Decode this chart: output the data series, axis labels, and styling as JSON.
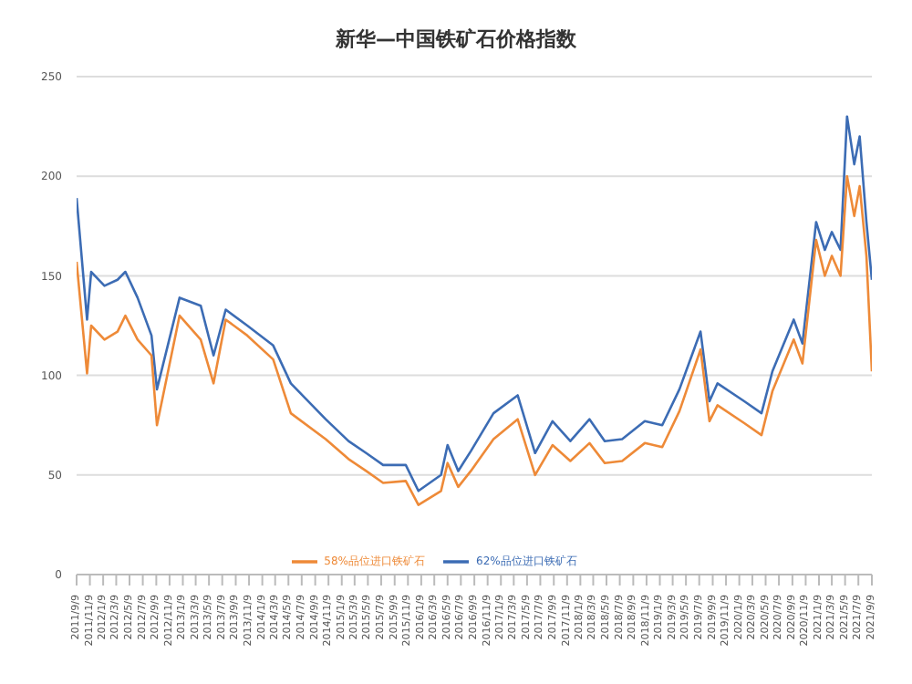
{
  "chart_data": {
    "type": "line",
    "title": "新华—中国铁矿石价格指数",
    "x": [
      "2011-09-09",
      "2011-10-27",
      "2011-11-15",
      "2012-01-15",
      "2012-03-15",
      "2012-04-20",
      "2012-06-15",
      "2012-08-18",
      "2012-09-12",
      "2012-12-25",
      "2013-04-01",
      "2013-05-30",
      "2013-07-25",
      "2013-11-01",
      "2014-02-28",
      "2014-05-20",
      "2014-10-27",
      "2015-02-09",
      "2015-05-01",
      "2015-07-18",
      "2015-10-30",
      "2015-12-27",
      "2016-04-09",
      "2016-05-09",
      "2016-06-27",
      "2016-08-24",
      "2016-12-06",
      "2017-03-27",
      "2017-06-15",
      "2017-09-03",
      "2017-11-24",
      "2018-02-20",
      "2018-05-01",
      "2018-07-20",
      "2018-11-01",
      "2019-01-20",
      "2019-04-09",
      "2019-07-15",
      "2019-08-25",
      "2019-10-01",
      "2020-02-01",
      "2020-04-20",
      "2020-06-09",
      "2020-09-15",
      "2020-10-25",
      "2020-12-27",
      "2021-02-05",
      "2021-03-09",
      "2021-04-18",
      "2021-05-18",
      "2021-06-20",
      "2021-07-15",
      "2021-08-15",
      "2021-09-09"
    ],
    "series": [
      {
        "name": "62%品位进口铁矿石",
        "color": "#3c6cb4",
        "values": [
          189,
          128,
          152,
          145,
          148,
          152,
          139,
          120,
          93,
          139,
          135,
          110,
          133,
          125,
          115,
          96,
          78,
          67,
          61,
          55,
          55,
          42,
          50,
          65,
          52,
          62,
          81,
          90,
          61,
          77,
          67,
          78,
          67,
          68,
          77,
          75,
          93,
          122,
          87,
          96,
          87,
          81,
          102,
          128,
          116,
          177,
          163,
          172,
          163,
          230,
          206,
          220,
          177,
          148
        ]
      },
      {
        "name": "58%品位进口铁矿石",
        "color": "#ee8a38",
        "values": [
          157,
          101,
          125,
          118,
          122,
          130,
          118,
          110,
          75,
          130,
          118,
          96,
          128,
          120,
          108,
          81,
          68,
          58,
          52,
          46,
          47,
          35,
          42,
          56,
          44,
          52,
          68,
          78,
          50,
          65,
          57,
          66,
          56,
          57,
          66,
          64,
          82,
          113,
          77,
          85,
          76,
          70,
          92,
          118,
          106,
          168,
          150,
          160,
          150,
          200,
          180,
          195,
          160,
          102
        ]
      }
    ],
    "xlim": [
      "2011-09-09",
      "2021-09-09"
    ],
    "xticks": [
      {
        "value": "2011-09-09",
        "label": "2011/9/9"
      },
      {
        "value": "2011-11-09",
        "label": "2011/11/9"
      },
      {
        "value": "2012-01-09",
        "label": "2012/1/9"
      },
      {
        "value": "2012-03-09",
        "label": "2012/3/9"
      },
      {
        "value": "2012-05-09",
        "label": "2012/5/9"
      },
      {
        "value": "2012-07-09",
        "label": "2012/7/9"
      },
      {
        "value": "2012-09-09",
        "label": "2012/9/9"
      },
      {
        "value": "2012-11-09",
        "label": "2012/11/9"
      },
      {
        "value": "2013-01-09",
        "label": "2013/1/9"
      },
      {
        "value": "2013-03-09",
        "label": "2013/3/9"
      },
      {
        "value": "2013-05-09",
        "label": "2013/5/9"
      },
      {
        "value": "2013-07-09",
        "label": "2013/7/9"
      },
      {
        "value": "2013-09-09",
        "label": "2013/9/9"
      },
      {
        "value": "2013-11-09",
        "label": "2013/11/9"
      },
      {
        "value": "2014-01-09",
        "label": "2014/1/9"
      },
      {
        "value": "2014-03-09",
        "label": "2014/3/9"
      },
      {
        "value": "2014-05-09",
        "label": "2014/5/9"
      },
      {
        "value": "2014-07-09",
        "label": "2014/7/9"
      },
      {
        "value": "2014-09-09",
        "label": "2014/9/9"
      },
      {
        "value": "2014-11-09",
        "label": "2014/11/9"
      },
      {
        "value": "2015-01-09",
        "label": "2015/1/9"
      },
      {
        "value": "2015-03-09",
        "label": "2015/3/9"
      },
      {
        "value": "2015-05-09",
        "label": "2015/5/9"
      },
      {
        "value": "2015-07-09",
        "label": "2015/7/9"
      },
      {
        "value": "2015-09-09",
        "label": "2015/9/9"
      },
      {
        "value": "2015-11-09",
        "label": "2015/11/9"
      },
      {
        "value": "2016-01-09",
        "label": "2016/1/9"
      },
      {
        "value": "2016-03-09",
        "label": "2016/3/9"
      },
      {
        "value": "2016-05-09",
        "label": "2016/5/9"
      },
      {
        "value": "2016-07-09",
        "label": "2016/7/9"
      },
      {
        "value": "2016-09-09",
        "label": "2016/9/9"
      },
      {
        "value": "2016-11-09",
        "label": "2016/11/9"
      },
      {
        "value": "2017-01-09",
        "label": "2017/1/9"
      },
      {
        "value": "2017-03-09",
        "label": "2017/3/9"
      },
      {
        "value": "2017-05-09",
        "label": "2017/5/9"
      },
      {
        "value": "2017-07-09",
        "label": "2017/7/9"
      },
      {
        "value": "2017-09-09",
        "label": "2017/9/9"
      },
      {
        "value": "2017-11-09",
        "label": "2017/11/9"
      },
      {
        "value": "2018-01-09",
        "label": "2018/1/9"
      },
      {
        "value": "2018-03-09",
        "label": "2018/3/9"
      },
      {
        "value": "2018-05-09",
        "label": "2018/5/9"
      },
      {
        "value": "2018-07-09",
        "label": "2018/7/9"
      },
      {
        "value": "2018-09-09",
        "label": "2018/9/9"
      },
      {
        "value": "2018-11-09",
        "label": "2018/11/9"
      },
      {
        "value": "2019-01-09",
        "label": "2019/1/9"
      },
      {
        "value": "2019-03-09",
        "label": "2019/3/9"
      },
      {
        "value": "2019-05-09",
        "label": "2019/5/9"
      },
      {
        "value": "2019-07-09",
        "label": "2019/7/9"
      },
      {
        "value": "2019-09-09",
        "label": "2019/9/9"
      },
      {
        "value": "2019-11-09",
        "label": "2019/11/9"
      },
      {
        "value": "2020-01-09",
        "label": "2020/1/9"
      },
      {
        "value": "2020-03-09",
        "label": "2020/3/9"
      },
      {
        "value": "2020-05-09",
        "label": "2020/5/9"
      },
      {
        "value": "2020-07-09",
        "label": "2020/7/9"
      },
      {
        "value": "2020-09-09",
        "label": "2020/9/9"
      },
      {
        "value": "2020-11-09",
        "label": "2020/11/9"
      },
      {
        "value": "2021-01-09",
        "label": "2021/1/9"
      },
      {
        "value": "2021-03-09",
        "label": "2021/3/9"
      },
      {
        "value": "2021-05-09",
        "label": "2021/5/9"
      },
      {
        "value": "2021-07-09",
        "label": "2021/7/9"
      },
      {
        "value": "2021-09-09",
        "label": "2021/9/9"
      }
    ],
    "ylim": [
      0,
      250
    ],
    "yticks": [
      0,
      50,
      100,
      150,
      200,
      250
    ],
    "grid": "y",
    "legend": "bottom",
    "marker": "none",
    "line_style": "solid"
  }
}
